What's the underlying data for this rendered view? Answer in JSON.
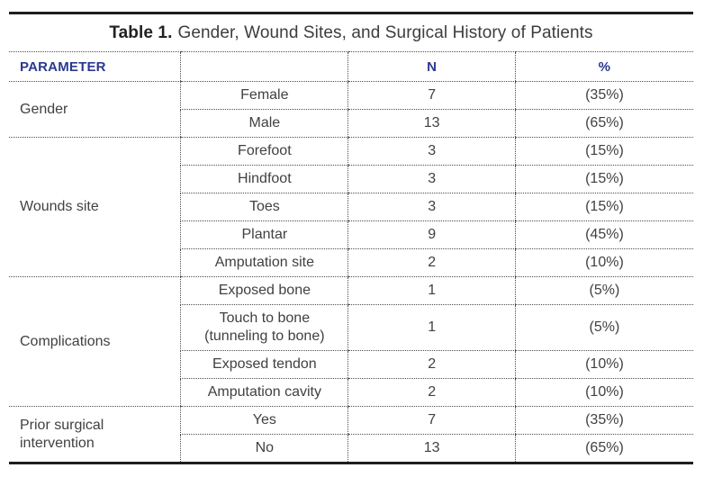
{
  "title": {
    "label": "Table 1.",
    "text": "Gender, Wound Sites, and Surgical History of Patients"
  },
  "colors": {
    "header_text": "#2b3990",
    "body_text": "#414042",
    "rule_solid": "#1e1e1e",
    "rule_dotted": "#4d4d4d"
  },
  "table": {
    "headers": {
      "parameter": "PARAMETER",
      "category": "",
      "n": "N",
      "pct": "%"
    },
    "groups": [
      {
        "parameter": "Gender",
        "rows": [
          {
            "label": "Female",
            "n": "7",
            "pct": "(35%)"
          },
          {
            "label": "Male",
            "n": "13",
            "pct": "(65%)"
          }
        ]
      },
      {
        "parameter": "Wounds site",
        "rows": [
          {
            "label": "Forefoot",
            "n": "3",
            "pct": "(15%)"
          },
          {
            "label": "Hindfoot",
            "n": "3",
            "pct": "(15%)"
          },
          {
            "label": "Toes",
            "n": "3",
            "pct": "(15%)"
          },
          {
            "label": "Plantar",
            "n": "9",
            "pct": "(45%)"
          },
          {
            "label": "Amputation site",
            "n": "2",
            "pct": "(10%)"
          }
        ]
      },
      {
        "parameter": "Complications",
        "rows": [
          {
            "label": "Exposed bone",
            "n": "1",
            "pct": "(5%)"
          },
          {
            "label": "Touch to bone (tunneling to bone)",
            "n": "1",
            "pct": "(5%)"
          },
          {
            "label": "Exposed tendon",
            "n": "2",
            "pct": "(10%)"
          },
          {
            "label": "Amputation cavity",
            "n": "2",
            "pct": "(10%)"
          }
        ]
      },
      {
        "parameter": "Prior surgical intervention",
        "rows": [
          {
            "label": "Yes",
            "n": "7",
            "pct": "(35%)"
          },
          {
            "label": "No",
            "n": "13",
            "pct": "(65%)"
          }
        ]
      }
    ]
  }
}
